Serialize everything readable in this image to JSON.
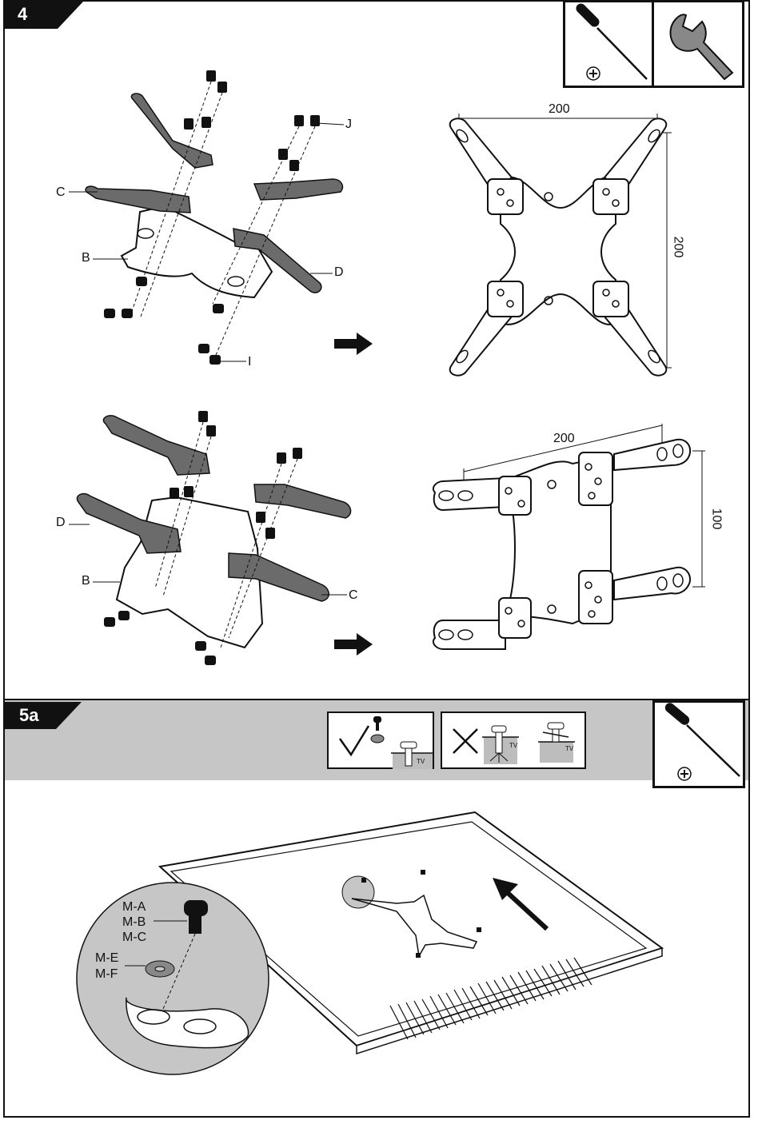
{
  "step4": {
    "label": "4",
    "parts": {
      "j": "J",
      "c_top": "C",
      "b_top": "B",
      "d_top": "D",
      "i": "I",
      "d_bottom": "D",
      "b_bottom": "B",
      "c_bottom": "C"
    },
    "dims": {
      "top_width": "200",
      "top_height": "200",
      "bottom_width": "200",
      "bottom_height": "100"
    }
  },
  "step5a": {
    "label": "5a",
    "tv_tags": [
      "TV",
      "TV",
      "TV"
    ],
    "screw_labels": [
      "M-A",
      "M-B",
      "M-C"
    ],
    "washer_labels": [
      "M-E",
      "M-F"
    ]
  },
  "icons": [
    "screwdriver-icon",
    "wrench-icon",
    "phillips-icon",
    "check-icon",
    "cross-icon",
    "arrow-right-icon",
    "arrow-up-icon"
  ],
  "colors": {
    "ink": "#111111",
    "band": "#c6c6c6",
    "part_fill": "#6b6b6b",
    "tv_box": "#bdbdbd"
  }
}
